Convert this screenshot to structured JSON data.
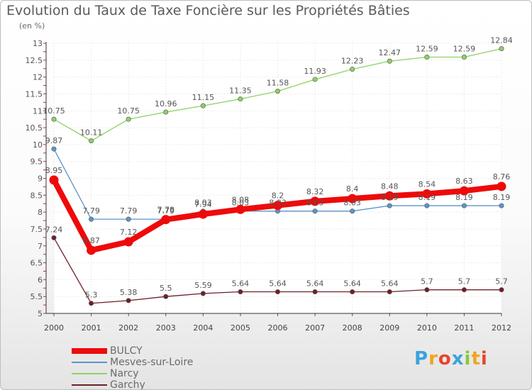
{
  "title": "Evolution du Taux de Taxe Foncière sur les Propriétés Bâties",
  "unit_label": "(en %)",
  "brand": {
    "text": "Proxiti",
    "colors": [
      "#3aa3dc",
      "#f0a51e",
      "#e5462c",
      "#3aa3dc",
      "#8cc63f",
      "#f0a51e",
      "#e5462c"
    ]
  },
  "chart_data": {
    "type": "line",
    "title": "Evolution du Taux de Taxe Foncière sur les Propriétés Bâties",
    "ylabel": "(en %)",
    "xlabel": "",
    "x": [
      "2000",
      "2001",
      "2002",
      "2003",
      "2004",
      "2005",
      "2006",
      "2007",
      "2008",
      "2009",
      "2010",
      "2011",
      "2012"
    ],
    "ylim": [
      5,
      13
    ],
    "yticks": [
      "5",
      "5.5",
      "6",
      "6.5",
      "7",
      "7.5",
      "8",
      "8.5",
      "9",
      "9.5",
      "10",
      "10.5",
      "11",
      "11.5",
      "12",
      "12.5",
      "13"
    ],
    "legend_position": "bottom-left",
    "series": [
      {
        "name": "Garchy",
        "color": "#6e1f2a",
        "width": 1.3,
        "marker_r": 3.2,
        "values": [
          7.24,
          5.3,
          5.38,
          5.5,
          5.59,
          5.64,
          5.64,
          5.64,
          5.64,
          5.64,
          5.7,
          5.7,
          5.7
        ],
        "labels": [
          "7.24",
          "5.3",
          "5.38",
          "5.5",
          "5.59",
          "5.64",
          "5.64",
          "5.64",
          "5.64",
          "5.64",
          "5.7",
          "5.7",
          "5.7"
        ]
      },
      {
        "name": "Narcy",
        "color": "#8dd163",
        "width": 1.3,
        "marker_r": 3.2,
        "values": [
          10.75,
          10.11,
          10.75,
          10.96,
          11.15,
          11.35,
          11.58,
          11.93,
          12.23,
          12.47,
          12.59,
          12.59,
          12.84
        ],
        "labels": [
          "10.75",
          "10.11",
          "10.75",
          "10.96",
          "11.15",
          "11.35",
          "11.58",
          "11.93",
          "12.23",
          "12.47",
          "12.59",
          "12.59",
          "12.84"
        ]
      },
      {
        "name": "Mesves-sur-Loire",
        "color": "#5b95c8",
        "width": 1.3,
        "marker_r": 3.2,
        "values": [
          9.87,
          7.79,
          7.79,
          7.79,
          8.03,
          8.03,
          8.03,
          8.03,
          8.03,
          8.19,
          8.19,
          8.19,
          8.19
        ],
        "labels": [
          "9.87",
          "7.79",
          "7.79",
          "7.79",
          "8.03",
          "8.03",
          "8.03",
          "8.03",
          "8.03",
          "8.19",
          "8.19",
          "8.19",
          "8.19"
        ]
      },
      {
        "name": "BULCY",
        "color": "#ee0a0a",
        "width": 8,
        "marker_r": 6.5,
        "values": [
          8.95,
          6.87,
          7.12,
          7.78,
          7.94,
          8.08,
          8.2,
          8.32,
          8.4,
          8.48,
          8.54,
          8.63,
          8.76
        ],
        "labels": [
          "8.95",
          "6.87",
          "7.12",
          "7.78",
          "7.94",
          "8.08",
          "8.2",
          "8.32",
          "8.4",
          "8.48",
          "8.54",
          "8.63",
          "8.76"
        ]
      }
    ],
    "legend_order": [
      "BULCY",
      "Mesves-sur-Loire",
      "Narcy",
      "Garchy"
    ]
  }
}
